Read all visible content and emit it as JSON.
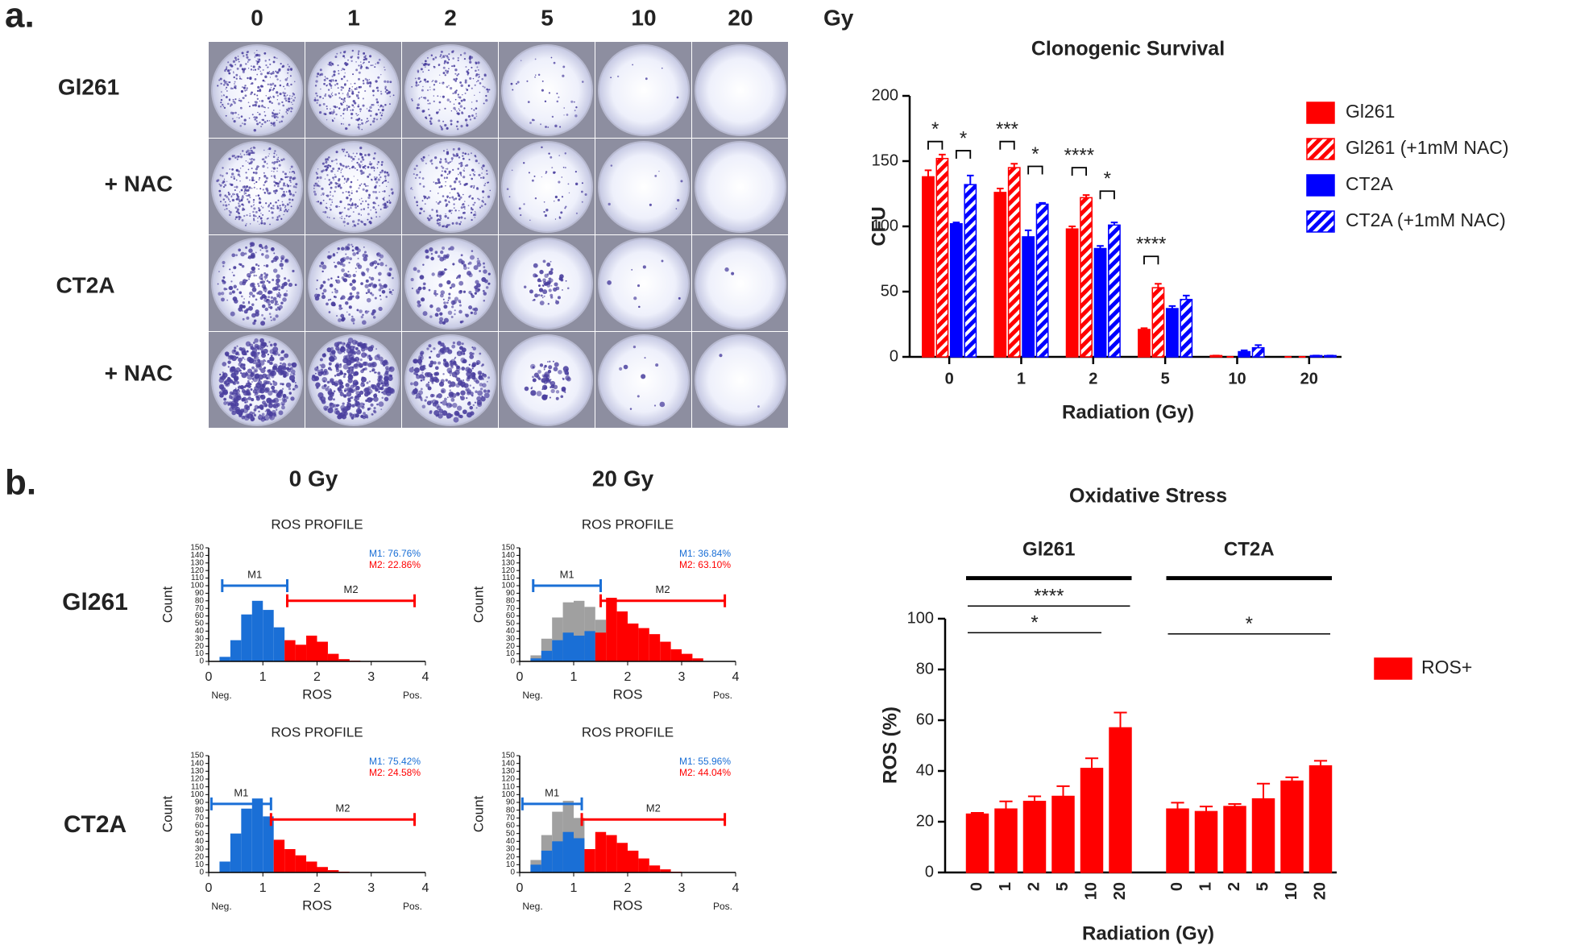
{
  "panels": {
    "a": "a.",
    "b": "b."
  },
  "plates": {
    "doses": [
      "0",
      "1",
      "2",
      "5",
      "10",
      "20"
    ],
    "unit": "Gy",
    "rows": [
      "Gl261",
      "+ NAC",
      "CT2A",
      "+ NAC"
    ]
  },
  "flow_labels": {
    "columns": [
      "0 Gy",
      "20 Gy"
    ],
    "rows": [
      "Gl261",
      "CT2A"
    ]
  },
  "chart_data": [
    {
      "type": "bar",
      "title": "Clonogenic Survival",
      "xlabel": "Radiation (Gy)",
      "ylabel": "CFU",
      "categories": [
        "0",
        "1",
        "2",
        "5",
        "10",
        "20"
      ],
      "ylim": [
        0,
        200
      ],
      "yticks": [
        0,
        50,
        100,
        150,
        200
      ],
      "legend": "upper right",
      "series": [
        {
          "name": "Gl261",
          "color": "#ff0000",
          "hatch": false,
          "values": [
            138,
            126,
            98,
            21,
            1,
            0
          ],
          "errors": [
            5,
            3,
            2,
            1,
            0,
            0
          ]
        },
        {
          "name": "Gl261 (+1mM NAC)",
          "color": "#ff0000",
          "hatch": true,
          "values": [
            152,
            145,
            122,
            53,
            0,
            0
          ],
          "errors": [
            3,
            3,
            2,
            3,
            0,
            0
          ]
        },
        {
          "name": "CT2A",
          "color": "#0000ff",
          "hatch": false,
          "values": [
            102,
            92,
            83,
            37,
            4,
            1
          ],
          "errors": [
            1,
            5,
            2,
            2,
            1,
            0
          ]
        },
        {
          "name": "CT2A (+1mM NAC)",
          "color": "#0000ff",
          "hatch": true,
          "values": [
            132,
            117,
            101,
            44,
            7,
            1
          ],
          "errors": [
            7,
            1,
            2,
            3,
            2,
            0
          ]
        }
      ],
      "annotations": [
        "*",
        "*",
        "***",
        "*",
        "****",
        "*",
        "****"
      ]
    },
    {
      "type": "histogram",
      "title": "ROS PROFILE",
      "xlabel": "ROS",
      "ylabel": "Count",
      "end_labels": [
        "Neg.",
        "Pos."
      ],
      "xlim": [
        0,
        4
      ],
      "xticks": [
        0,
        1,
        2,
        3,
        4
      ],
      "ylim": [
        0,
        150
      ],
      "yticks": [
        0,
        10,
        20,
        30,
        40,
        50,
        60,
        70,
        80,
        90,
        100,
        110,
        120,
        130,
        140,
        150
      ],
      "bins": [
        0,
        0.2,
        0.4,
        0.6,
        0.8,
        1,
        1.2,
        1.4,
        1.6,
        1.8,
        2,
        2.2,
        2.4,
        2.6,
        2.8,
        3,
        3.2,
        3.4,
        3.6,
        3.8,
        4
      ],
      "values": [
        0,
        6,
        28,
        62,
        80,
        68,
        45,
        28,
        22,
        34,
        26,
        10,
        3,
        1,
        0,
        0,
        0,
        0,
        0,
        0
      ],
      "gates": [
        {
          "name": "M1",
          "color": "#1a6fd6",
          "range": [
            0.25,
            1.45
          ],
          "level": 100,
          "label": "M1: 76.76%"
        },
        {
          "name": "M2",
          "color": "#ff0000",
          "range": [
            1.45,
            3.8
          ],
          "level": 80,
          "label": "M2: 22.86%"
        }
      ]
    },
    {
      "type": "histogram",
      "title": "ROS PROFILE",
      "xlabel": "ROS",
      "ylabel": "Count",
      "end_labels": [
        "Neg.",
        "Pos."
      ],
      "xlim": [
        0,
        4
      ],
      "xticks": [
        0,
        1,
        2,
        3,
        4
      ],
      "ylim": [
        0,
        150
      ],
      "yticks": [
        0,
        10,
        20,
        30,
        40,
        50,
        60,
        70,
        80,
        90,
        100,
        110,
        120,
        130,
        140,
        150
      ],
      "bins": [
        0,
        0.2,
        0.4,
        0.6,
        0.8,
        1,
        1.2,
        1.4,
        1.6,
        1.8,
        2,
        2.2,
        2.4,
        2.6,
        2.8,
        3,
        3.2,
        3.4,
        3.6,
        3.8,
        4
      ],
      "values": [
        0,
        4,
        14,
        28,
        38,
        34,
        40,
        38,
        84,
        66,
        50,
        44,
        36,
        26,
        16,
        10,
        4,
        0,
        0,
        0
      ],
      "overlay": {
        "color": "#a0a0a0",
        "values": [
          0,
          8,
          30,
          58,
          78,
          80,
          72,
          55,
          0,
          0,
          0,
          0,
          0,
          0,
          0,
          0,
          0,
          0,
          0,
          0
        ]
      },
      "gates": [
        {
          "name": "M1",
          "color": "#1a6fd6",
          "range": [
            0.25,
            1.5
          ],
          "level": 100,
          "label": "M1: 36.84%"
        },
        {
          "name": "M2",
          "color": "#ff0000",
          "range": [
            1.5,
            3.8
          ],
          "level": 80,
          "label": "M2: 63.10%"
        }
      ]
    },
    {
      "type": "histogram",
      "title": "ROS PROFILE",
      "xlabel": "ROS",
      "ylabel": "Count",
      "end_labels": [
        "Neg.",
        "Pos."
      ],
      "xlim": [
        0,
        4
      ],
      "xticks": [
        0,
        1,
        2,
        3,
        4
      ],
      "ylim": [
        0,
        150
      ],
      "yticks": [
        0,
        10,
        20,
        30,
        40,
        50,
        60,
        70,
        80,
        90,
        100,
        110,
        120,
        130,
        140,
        150
      ],
      "bins": [
        0,
        0.2,
        0.4,
        0.6,
        0.8,
        1,
        1.2,
        1.4,
        1.6,
        1.8,
        2,
        2.2,
        2.4,
        2.6,
        2.8,
        3,
        3.2,
        3.4,
        3.6,
        3.8,
        4
      ],
      "values": [
        0,
        14,
        50,
        82,
        95,
        72,
        42,
        30,
        22,
        14,
        7,
        3,
        1,
        0,
        0,
        0,
        0,
        0,
        0,
        0
      ],
      "gates": [
        {
          "name": "M1",
          "color": "#1a6fd6",
          "range": [
            0.05,
            1.15
          ],
          "level": 88,
          "label": "M1: 75.42%"
        },
        {
          "name": "M2",
          "color": "#ff0000",
          "range": [
            1.15,
            3.8
          ],
          "level": 68,
          "label": "M2: 24.58%"
        }
      ]
    },
    {
      "type": "histogram",
      "title": "ROS PROFILE",
      "xlabel": "ROS",
      "ylabel": "Count",
      "end_labels": [
        "Neg.",
        "Pos."
      ],
      "xlim": [
        0,
        4
      ],
      "xticks": [
        0,
        1,
        2,
        3,
        4
      ],
      "ylim": [
        0,
        150
      ],
      "yticks": [
        0,
        10,
        20,
        30,
        40,
        50,
        60,
        70,
        80,
        90,
        100,
        110,
        120,
        130,
        140,
        150
      ],
      "bins": [
        0,
        0.2,
        0.4,
        0.6,
        0.8,
        1,
        1.2,
        1.4,
        1.6,
        1.8,
        2,
        2.2,
        2.4,
        2.6,
        2.8,
        3,
        3.2,
        3.4,
        3.6,
        3.8,
        4
      ],
      "values": [
        0,
        10,
        28,
        40,
        52,
        44,
        30,
        52,
        48,
        38,
        28,
        18,
        9,
        4,
        1,
        0,
        0,
        0,
        0,
        0
      ],
      "overlay": {
        "color": "#a0a0a0",
        "values": [
          0,
          16,
          48,
          78,
          92,
          70,
          0,
          0,
          0,
          0,
          0,
          0,
          0,
          0,
          0,
          0,
          0,
          0,
          0,
          0
        ]
      },
      "gates": [
        {
          "name": "M1",
          "color": "#1a6fd6",
          "range": [
            0.05,
            1.15
          ],
          "level": 88,
          "label": "M1: 55.96%"
        },
        {
          "name": "M2",
          "color": "#ff0000",
          "range": [
            1.15,
            3.8
          ],
          "level": 68,
          "label": "M2: 44.04%"
        }
      ]
    },
    {
      "type": "bar",
      "title": "Oxidative Stress",
      "xlabel": "Radiation (Gy)",
      "ylabel": "ROS  (%)",
      "groups": [
        "Gl261",
        "CT2A"
      ],
      "categories": [
        "0",
        "1",
        "2",
        "5",
        "10",
        "20",
        "0",
        "1",
        "2",
        "5",
        "10",
        "20"
      ],
      "ylim": [
        0,
        100
      ],
      "yticks": [
        0,
        20,
        40,
        60,
        80,
        100
      ],
      "legend": "right",
      "series": [
        {
          "name": "ROS+",
          "color": "#ff0000",
          "hatch": false,
          "values": [
            23,
            25,
            28,
            30,
            41,
            57,
            25,
            24,
            26,
            29,
            36,
            42
          ],
          "errors": [
            0.5,
            3,
            2,
            4,
            4,
            6,
            2.5,
            2,
            1,
            6,
            1.5,
            2
          ]
        }
      ],
      "annotations": [
        "****",
        "*",
        "*"
      ]
    }
  ]
}
